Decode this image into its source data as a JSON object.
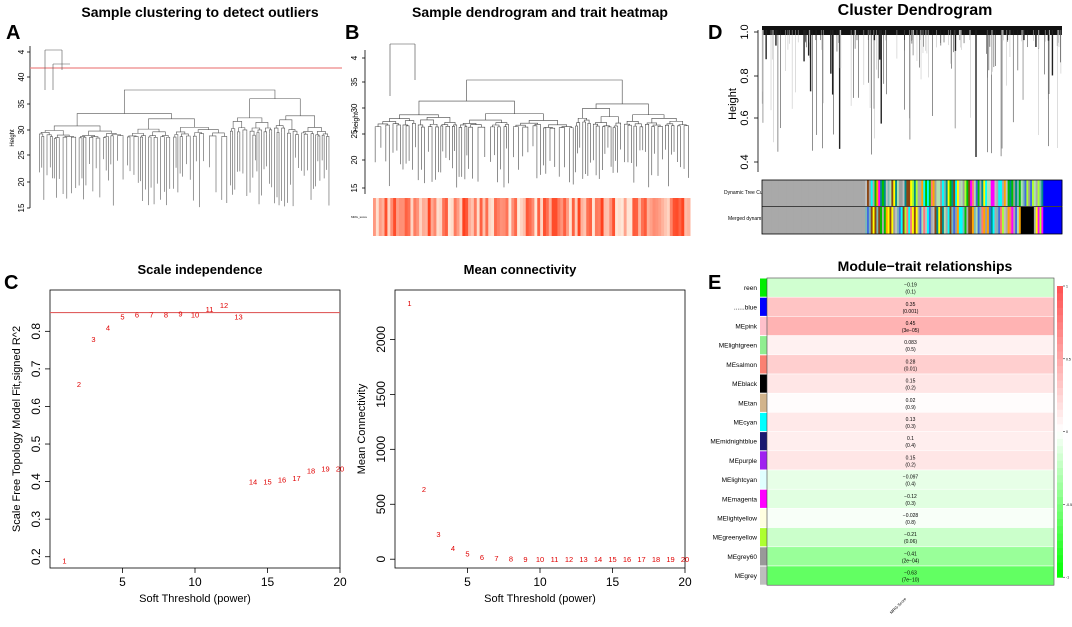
{
  "panels": {
    "A": {
      "letter": "A",
      "title": "Sample clustering to detect outliers",
      "ylabel": "Height",
      "yticks": [
        15,
        20,
        25,
        30,
        35,
        40,
        4
      ],
      "cutoff": 42
    },
    "B": {
      "letter": "B",
      "title": "Sample dendrogram and trait heatmap",
      "ylabel": "Height",
      "yticks": [
        15,
        20,
        25,
        30,
        35,
        4
      ],
      "trait_label": "MRG_score"
    },
    "C": {
      "letter": "C"
    },
    "D": {
      "letter": "D",
      "title": "Cluster Dendrogram",
      "ylabel": "Height",
      "yticks": [
        "0.4",
        "0.6",
        "0.8",
        "1.0"
      ],
      "row_labels": [
        "Dynamic Tree Cut",
        "Merged dynamic"
      ]
    },
    "E": {
      "letter": "E",
      "title": "Module−trait relationships",
      "xlabel": "MRG-Score",
      "legend_ticks": [
        "1",
        "0.5",
        "0",
        "-0.5",
        "-1"
      ]
    }
  },
  "chart_data": [
    {
      "type": "line",
      "id": "scale-independence",
      "title": "Scale independence",
      "xlabel": "Soft Threshold (power)",
      "ylabel": "Scale Free Topology Model Fit,signed R^2",
      "xlim": [
        0,
        20
      ],
      "ylim": [
        0.17,
        0.91
      ],
      "xticks": [
        5,
        10,
        15,
        20
      ],
      "yticks": [
        "0.2",
        "0.3",
        "0.4",
        "0.5",
        "0.6",
        "0.7",
        "0.8"
      ],
      "hline": 0.85,
      "x": [
        1,
        2,
        3,
        4,
        5,
        6,
        7,
        8,
        9,
        10,
        11,
        12,
        13,
        14,
        15,
        16,
        17,
        18,
        19,
        20
      ],
      "y": [
        0.19,
        0.66,
        0.78,
        0.81,
        0.84,
        0.845,
        0.845,
        0.845,
        0.848,
        0.845,
        0.86,
        0.87,
        0.84,
        0.4,
        0.4,
        0.405,
        0.41,
        0.43,
        0.435,
        0.435
      ],
      "labels": [
        "1",
        "2",
        "3",
        "4",
        "5",
        "6",
        "7",
        "8",
        "9",
        "10",
        "11",
        "12",
        "13",
        "14",
        "15",
        "16",
        "17",
        "18",
        "19",
        "20"
      ]
    },
    {
      "type": "line",
      "id": "mean-connectivity",
      "title": "Mean connectivity",
      "xlabel": "Soft Threshold (power)",
      "ylabel": "Mean Connectivity",
      "xlim": [
        0,
        20
      ],
      "ylim": [
        -80,
        2450
      ],
      "xticks": [
        5,
        10,
        15,
        20
      ],
      "yticks": [
        0,
        500,
        1000,
        1500,
        2000
      ],
      "x": [
        1,
        2,
        3,
        4,
        5,
        6,
        7,
        8,
        9,
        10,
        11,
        12,
        13,
        14,
        15,
        16,
        17,
        18,
        19,
        20
      ],
      "y": [
        2330,
        640,
        230,
        100,
        50,
        20,
        10,
        5,
        3,
        2,
        1,
        1,
        1,
        0,
        0,
        0,
        0,
        0,
        0,
        0
      ],
      "labels": [
        "1",
        "2",
        "3",
        "4",
        "5",
        "6",
        "7",
        "8",
        "9",
        "10",
        "11",
        "12",
        "13",
        "14",
        "15",
        "16",
        "17",
        "18",
        "19",
        "20"
      ]
    },
    {
      "type": "heatmap",
      "id": "module-trait",
      "title": "Module−trait relationships",
      "xlabel": "MRG-Score",
      "rows": [
        {
          "module": "reen",
          "color": "#00ee00",
          "r": -0.19,
          "text": "−0.19",
          "p": "(0.1)"
        },
        {
          "module": "......blue",
          "color": "#0000ff",
          "r": 0.35,
          "text": "0.35",
          "p": "(0.001)"
        },
        {
          "module": "MEpink",
          "color": "#ffc0cb",
          "r": 0.45,
          "text": "0.45",
          "p": "(3e−05)"
        },
        {
          "module": "MElightgreen",
          "color": "#90ee90",
          "r": 0.083,
          "text": "0.083",
          "p": "(0.5)"
        },
        {
          "module": "MEsalmon",
          "color": "#fa8072",
          "r": 0.28,
          "text": "0.28",
          "p": "(0.01)"
        },
        {
          "module": "MEblack",
          "color": "#000000",
          "r": 0.15,
          "text": "0.15",
          "p": "(0.2)"
        },
        {
          "module": "MEtan",
          "color": "#d2b48c",
          "r": 0.02,
          "text": "0.02",
          "p": "(0.9)"
        },
        {
          "module": "MEcyan",
          "color": "#00ffff",
          "r": 0.13,
          "text": "0.13",
          "p": "(0.3)"
        },
        {
          "module": "MEmidnightblue",
          "color": "#191970",
          "r": 0.1,
          "text": "0.1",
          "p": "(0.4)"
        },
        {
          "module": "MEpurple",
          "color": "#a020f0",
          "r": 0.15,
          "text": "0.15",
          "p": "(0.2)"
        },
        {
          "module": "MElightcyan",
          "color": "#e0ffff",
          "r": -0.097,
          "text": "−0.097",
          "p": "(0.4)"
        },
        {
          "module": "MEmagenta",
          "color": "#ff00ff",
          "r": -0.12,
          "text": "−0.12",
          "p": "(0.3)"
        },
        {
          "module": "MElightyellow",
          "color": "#ffffe0",
          "r": -0.028,
          "text": "−0.028",
          "p": "(0.8)"
        },
        {
          "module": "MEgreenyellow",
          "color": "#adff2f",
          "r": -0.21,
          "text": "−0.21",
          "p": "(0.06)"
        },
        {
          "module": "MEgrey60",
          "color": "#999999",
          "r": -0.41,
          "text": "−0.41",
          "p": "(2e−04)"
        },
        {
          "module": "MEgrey",
          "color": "#bebebe",
          "r": -0.63,
          "text": "−0.63",
          "p": "(7e−10)"
        }
      ]
    }
  ]
}
